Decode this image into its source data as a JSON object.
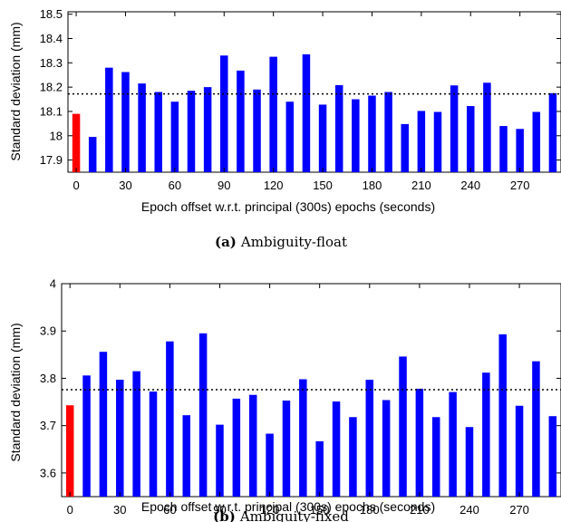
{
  "chart_data": [
    {
      "type": "bar",
      "caption_tag": "(a)",
      "caption_text": "Ambiguity-float",
      "xlabel": "Epoch offset w.r.t. principal (300s) epochs (seconds)",
      "ylabel": "Standard deviation (mm)",
      "ylim": [
        17.85,
        18.51
      ],
      "yticks": [
        "17.9",
        "18",
        "18.1",
        "18.2",
        "18.3",
        "18.4",
        "18.5"
      ],
      "ytick_values": [
        17.9,
        18.0,
        18.1,
        18.2,
        18.3,
        18.4,
        18.5
      ],
      "xticks": [
        "0",
        "30",
        "60",
        "90",
        "120",
        "150",
        "180",
        "210",
        "240",
        "270"
      ],
      "xtick_values": [
        0,
        30,
        60,
        90,
        120,
        150,
        180,
        210,
        240,
        270
      ],
      "xlim": [
        -5,
        295
      ],
      "x": [
        0,
        10,
        20,
        30,
        40,
        50,
        60,
        70,
        80,
        90,
        100,
        110,
        120,
        130,
        140,
        150,
        160,
        170,
        180,
        190,
        200,
        210,
        220,
        230,
        240,
        250,
        260,
        270,
        280,
        290
      ],
      "values": [
        18.09,
        17.995,
        18.28,
        18.262,
        18.215,
        18.18,
        18.14,
        18.185,
        18.2,
        18.33,
        18.268,
        18.19,
        18.325,
        18.14,
        18.335,
        18.128,
        18.208,
        18.15,
        18.165,
        18.18,
        18.048,
        18.102,
        18.098,
        18.207,
        18.122,
        18.218,
        18.04,
        18.028,
        18.098,
        18.175
      ],
      "mean_line": 18.172,
      "highlight_color": "#ff0000",
      "bar_color": "#0000ff"
    },
    {
      "type": "bar",
      "caption_tag": "(b)",
      "caption_text": "Ambiguity-fixed",
      "xlabel": "Epoch offset w.r.t. principal (300s) epochs (seconds)",
      "ylabel": "Standard deviation (mm)",
      "ylim": [
        3.55,
        4.0
      ],
      "yticks": [
        "3.6",
        "3.7",
        "3.8",
        "3.9",
        "4"
      ],
      "ytick_values": [
        3.6,
        3.7,
        3.8,
        3.9,
        4.0
      ],
      "xticks": [
        "0",
        "30",
        "60",
        "90",
        "120",
        "150",
        "180",
        "210",
        "240",
        "270"
      ],
      "xtick_values": [
        0,
        30,
        60,
        90,
        120,
        150,
        180,
        210,
        240,
        270
      ],
      "xlim": [
        -5,
        295
      ],
      "x": [
        0,
        10,
        20,
        30,
        40,
        50,
        60,
        70,
        80,
        90,
        100,
        110,
        120,
        130,
        140,
        150,
        160,
        170,
        180,
        190,
        200,
        210,
        220,
        230,
        240,
        250,
        260,
        270,
        280,
        290
      ],
      "values": [
        3.743,
        3.806,
        3.856,
        3.797,
        3.815,
        3.772,
        3.878,
        3.722,
        3.895,
        3.702,
        3.757,
        3.765,
        3.683,
        3.753,
        3.798,
        3.667,
        3.751,
        3.718,
        3.797,
        3.754,
        3.846,
        3.778,
        3.718,
        3.771,
        3.697,
        3.812,
        3.893,
        3.742,
        3.836,
        3.72
      ],
      "mean_line": 3.776,
      "highlight_color": "#ff0000",
      "bar_color": "#0000ff"
    }
  ]
}
